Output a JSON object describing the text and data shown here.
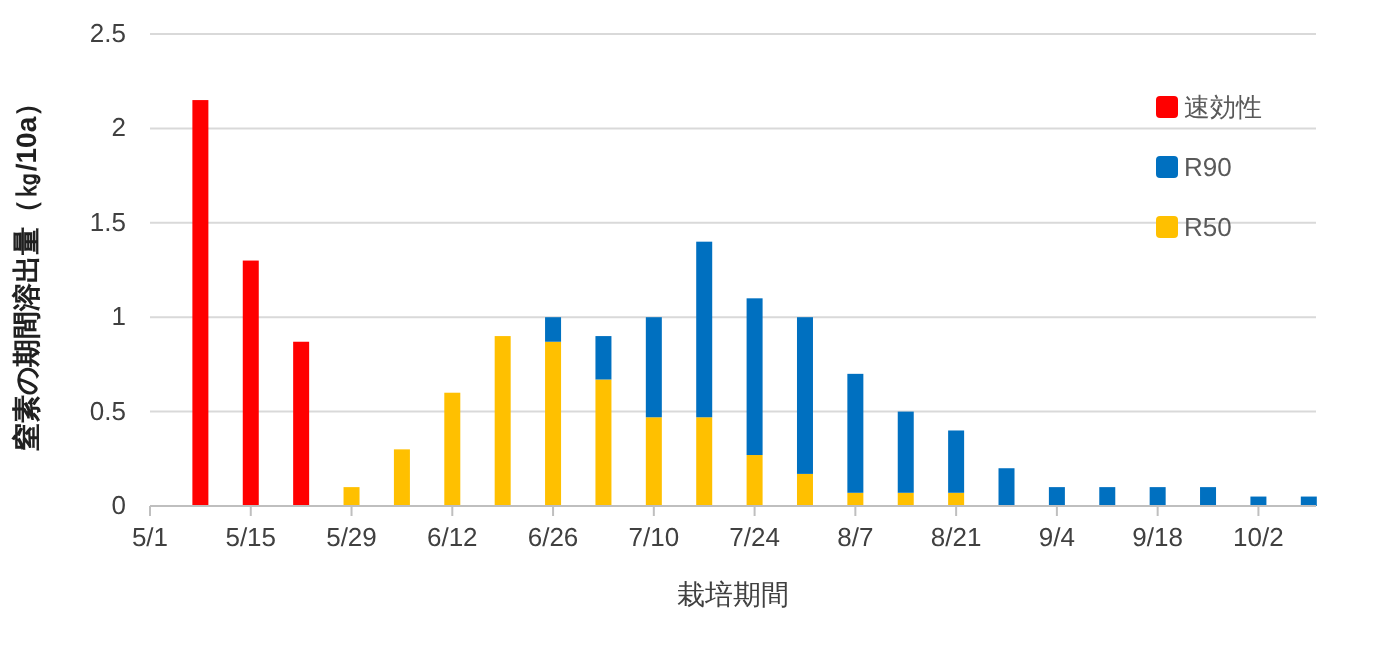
{
  "chart_data": {
    "type": "bar",
    "stacked": true,
    "xlabel": "栽培期間",
    "ylabel": "窒素の期間溶出量（㎏/10a）",
    "x": [
      "--05-08",
      "--05-15",
      "--05-22",
      "--05-29",
      "--06-05",
      "--06-12",
      "--06-19",
      "--06-26",
      "--07-03",
      "--07-10",
      "--07-17",
      "--07-24",
      "--07-31",
      "--08-07",
      "--08-14",
      "--08-21",
      "--08-28",
      "--09-04",
      "--09-11",
      "--09-18",
      "--09-25",
      "--10-02",
      "--10-09"
    ],
    "series": [
      {
        "name": "R50",
        "color": "#ffc000",
        "values": [
          0,
          0,
          0,
          0.1,
          0.3,
          0.6,
          0.9,
          0.87,
          0.67,
          0.47,
          0.47,
          0.27,
          0.17,
          0.07,
          0.07,
          0.07,
          0,
          0,
          0,
          0,
          0,
          0,
          0
        ]
      },
      {
        "name": "R90",
        "color": "#0070c0",
        "values": [
          0,
          0,
          0,
          0,
          0,
          0,
          0,
          0.13,
          0.23,
          0.53,
          0.93,
          0.83,
          0.83,
          0.63,
          0.43,
          0.33,
          0.2,
          0.1,
          0.1,
          0.1,
          0.1,
          0.05,
          0.05
        ]
      },
      {
        "name": "速効性",
        "color": "#ff0000",
        "values": [
          2.15,
          1.3,
          0.87,
          0,
          0,
          0,
          0,
          0,
          0,
          0,
          0,
          0,
          0,
          0,
          0,
          0,
          0,
          0,
          0,
          0,
          0,
          0,
          0
        ]
      }
    ],
    "xlim": [
      "--05-01",
      "--10-10"
    ],
    "xticks": [
      {
        "value": "--05-01",
        "label": "5/1"
      },
      {
        "value": "--05-15",
        "label": "5/15"
      },
      {
        "value": "--05-29",
        "label": "5/29"
      },
      {
        "value": "--06-12",
        "label": "6/12"
      },
      {
        "value": "--06-26",
        "label": "6/26"
      },
      {
        "value": "--07-10",
        "label": "7/10"
      },
      {
        "value": "--07-24",
        "label": "7/24"
      },
      {
        "value": "--08-07",
        "label": "8/7"
      },
      {
        "value": "--08-21",
        "label": "8/21"
      },
      {
        "value": "--09-04",
        "label": "9/4"
      },
      {
        "value": "--09-18",
        "label": "9/18"
      },
      {
        "value": "--10-02",
        "label": "10/2"
      }
    ],
    "ylim": [
      0,
      2.5
    ],
    "yticks": [
      0,
      0.5,
      1,
      1.5,
      2,
      2.5
    ],
    "grid": "y",
    "legend": "right"
  }
}
